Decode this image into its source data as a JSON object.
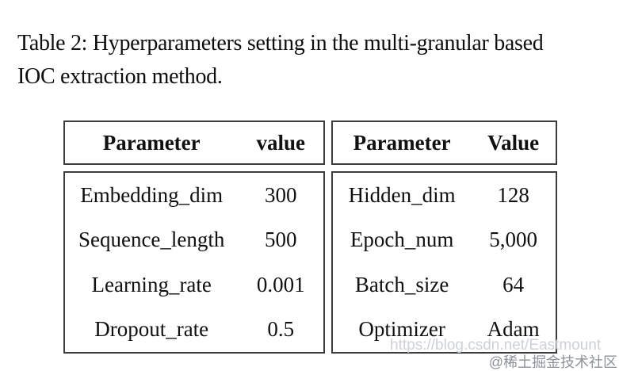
{
  "caption": {
    "line1": "Table 2: Hyperparameters setting in the multi-granular based",
    "line2": "IOC extraction method."
  },
  "table": {
    "left": {
      "header": {
        "param": "Parameter",
        "value": "value"
      },
      "rows": [
        {
          "param": "Embedding_dim",
          "value": "300"
        },
        {
          "param": "Sequence_length",
          "value": "500"
        },
        {
          "param": "Learning_rate",
          "value": "0.001"
        },
        {
          "param": "Dropout_rate",
          "value": "0.5"
        }
      ]
    },
    "right": {
      "header": {
        "param": "Parameter",
        "value": "Value"
      },
      "rows": [
        {
          "param": "Hidden_dim",
          "value": "128"
        },
        {
          "param": "Epoch_num",
          "value": "5,000"
        },
        {
          "param": "Batch_size",
          "value": "64"
        },
        {
          "param": "Optimizer",
          "value": "Adam"
        }
      ]
    }
  },
  "watermarks": {
    "url": "https://blog.csdn.net/Eastmount",
    "community": "@稀土掘金技术社区"
  },
  "colors": {
    "text": "#101010",
    "border": "#3d3d3d",
    "background": "#ffffff",
    "watermark_url": "#ccd1d8",
    "watermark_community": "#8d929b"
  }
}
